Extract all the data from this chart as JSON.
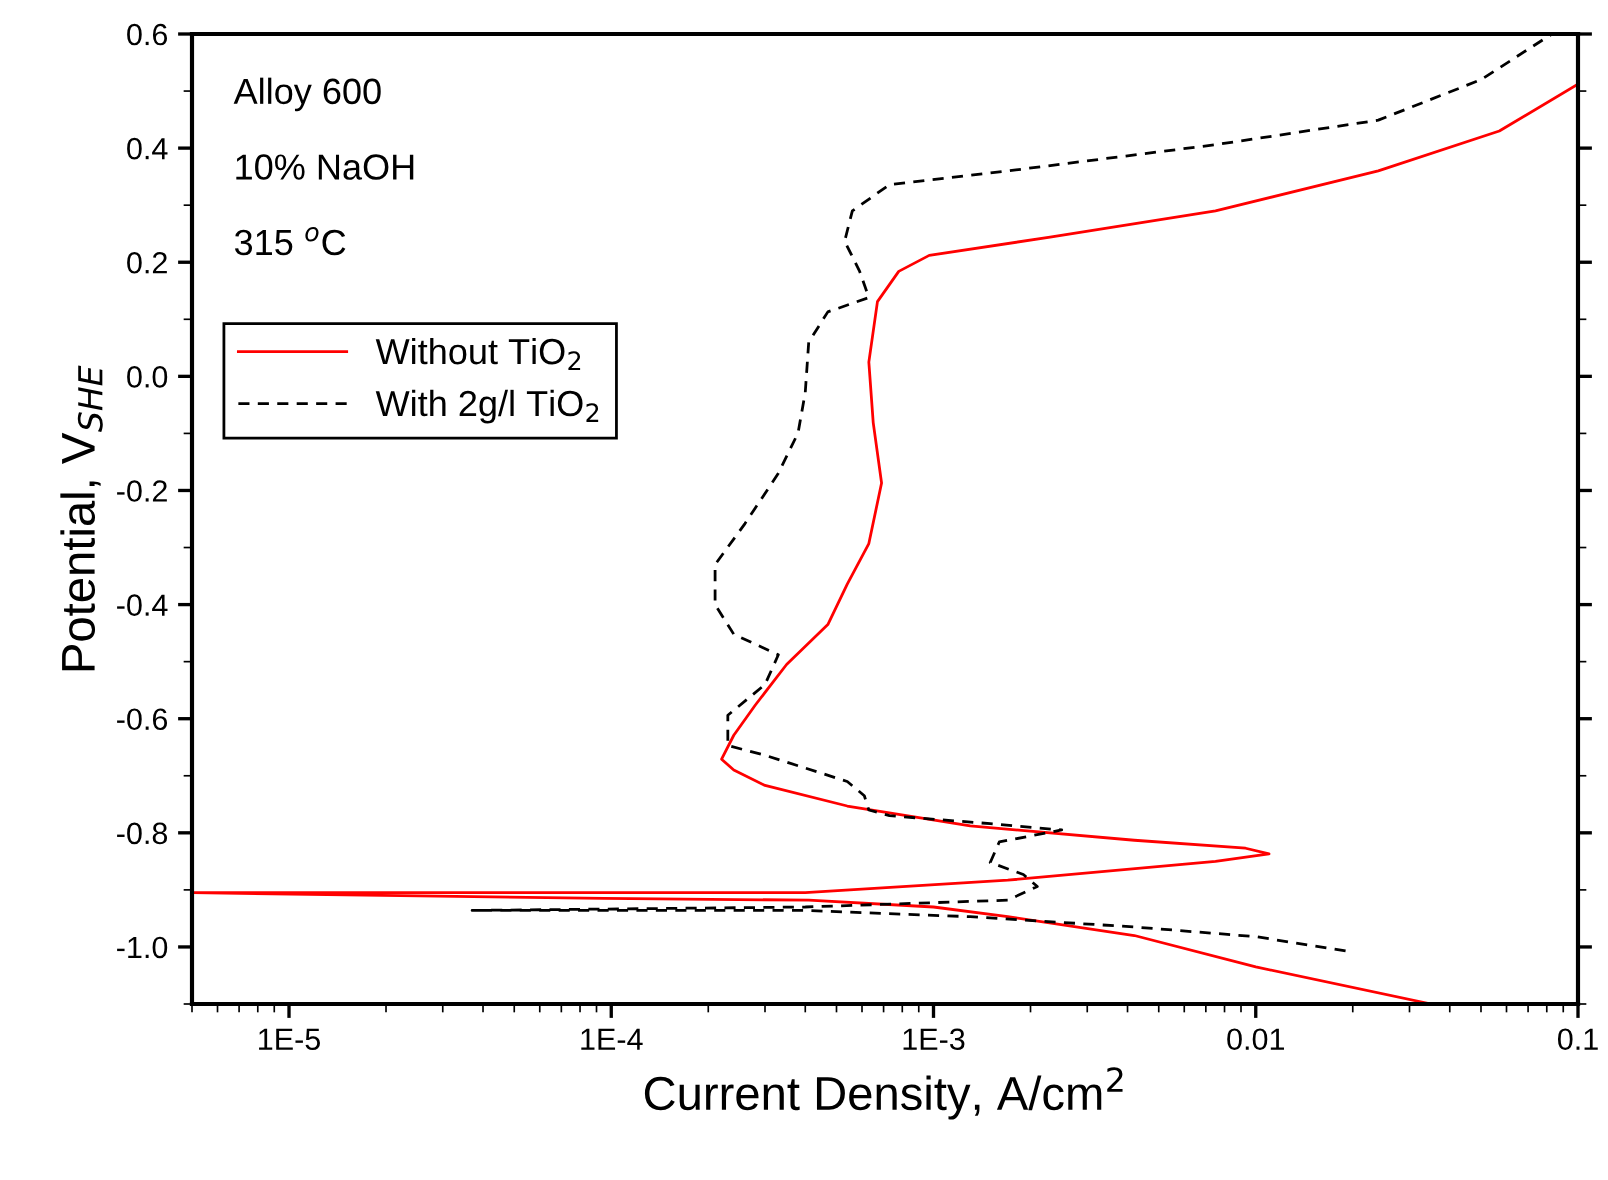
{
  "chart_data": {
    "type": "line",
    "xlabel": "Current Density, A/cm$^{2}$",
    "ylabel": "Potential, V$_{SHE}$",
    "log": "x",
    "xlim": [
      5e-06,
      0.1
    ],
    "xticks": [
      {
        "value": 1e-05,
        "label": "1E-5"
      },
      {
        "value": 0.0001,
        "label": "1E-4"
      },
      {
        "value": 0.001,
        "label": "1E-3"
      },
      0.01,
      0.1
    ],
    "ylim": [
      -1.1,
      0.6
    ],
    "yticks": [
      {
        "value": -1.0,
        "label": "-1.0"
      },
      {
        "value": -0.8,
        "label": "-0.8"
      },
      {
        "value": -0.6,
        "label": "-0.6"
      },
      {
        "value": -0.4,
        "label": "-0.4"
      },
      {
        "value": -0.2,
        "label": "-0.2"
      },
      {
        "value": 0.0,
        "label": "0.0"
      },
      0.2,
      0.4,
      0.6
    ],
    "grid": false,
    "legend": "top left",
    "annotations": [
      "Alloy 600",
      "10% NaOH",
      "315 $^{o}$C"
    ],
    "series": [
      {
        "name": "Without TiO$_{2}$",
        "color": "#ff0000",
        "line_style": "solid",
        "x": [
          0.035,
          0.01,
          0.0042,
          0.0017,
          0.001,
          0.00041,
          9.5e-05,
          5e-06,
          9.5e-05,
          0.0004,
          0.0017,
          0.0075,
          0.011,
          0.0093,
          0.0042,
          0.0013,
          0.00054,
          0.0003,
          0.00024,
          0.00022,
          0.00024,
          0.00028,
          0.00035,
          0.00047,
          0.00054,
          0.00063,
          0.00069,
          0.00065,
          0.00063,
          0.00067,
          0.00078,
          0.00097,
          0.0023,
          0.0075,
          0.024,
          0.057,
          0.1
        ],
        "values": [
          -1.1,
          -1.035,
          -0.98,
          -0.947,
          -0.93,
          -0.918,
          -0.915,
          -0.905,
          -0.905,
          -0.905,
          -0.883,
          -0.85,
          -0.837,
          -0.827,
          -0.813,
          -0.788,
          -0.753,
          -0.717,
          -0.69,
          -0.671,
          -0.629,
          -0.576,
          -0.505,
          -0.435,
          -0.364,
          -0.293,
          -0.187,
          -0.081,
          0.025,
          0.131,
          0.184,
          0.212,
          0.244,
          0.29,
          0.36,
          0.43,
          0.512
        ]
      },
      {
        "name": "With 2g/l TiO$_{2}$",
        "color": "#000000",
        "line_style": "dashed",
        "x": [
          0.019,
          0.01,
          0.0042,
          0.0013,
          0.0004,
          3.7e-05,
          0.0004,
          0.0017,
          0.0021,
          0.0019,
          0.0015,
          0.0016,
          0.0025,
          0.0015,
          0.00073,
          0.00063,
          0.00061,
          0.00054,
          0.0003,
          0.00023,
          0.00023,
          0.0003,
          0.00033,
          0.00024,
          0.00021,
          0.00021,
          0.00026,
          0.00033,
          0.00038,
          0.0004,
          0.00041,
          0.00047,
          0.00063,
          0.00059,
          0.00053,
          0.00056,
          0.00073,
          0.0017,
          0.0075,
          0.024,
          0.05,
          0.083
        ],
        "values": [
          -1.007,
          -0.982,
          -0.965,
          -0.947,
          -0.936,
          -0.936,
          -0.93,
          -0.918,
          -0.894,
          -0.873,
          -0.852,
          -0.816,
          -0.795,
          -0.784,
          -0.77,
          -0.76,
          -0.735,
          -0.71,
          -0.664,
          -0.647,
          -0.594,
          -0.54,
          -0.488,
          -0.452,
          -0.4,
          -0.33,
          -0.258,
          -0.17,
          -0.099,
          -0.028,
          0.06,
          0.113,
          0.138,
          0.184,
          0.237,
          0.29,
          0.336,
          0.36,
          0.406,
          0.449,
          0.52,
          0.6
        ]
      }
    ]
  }
}
